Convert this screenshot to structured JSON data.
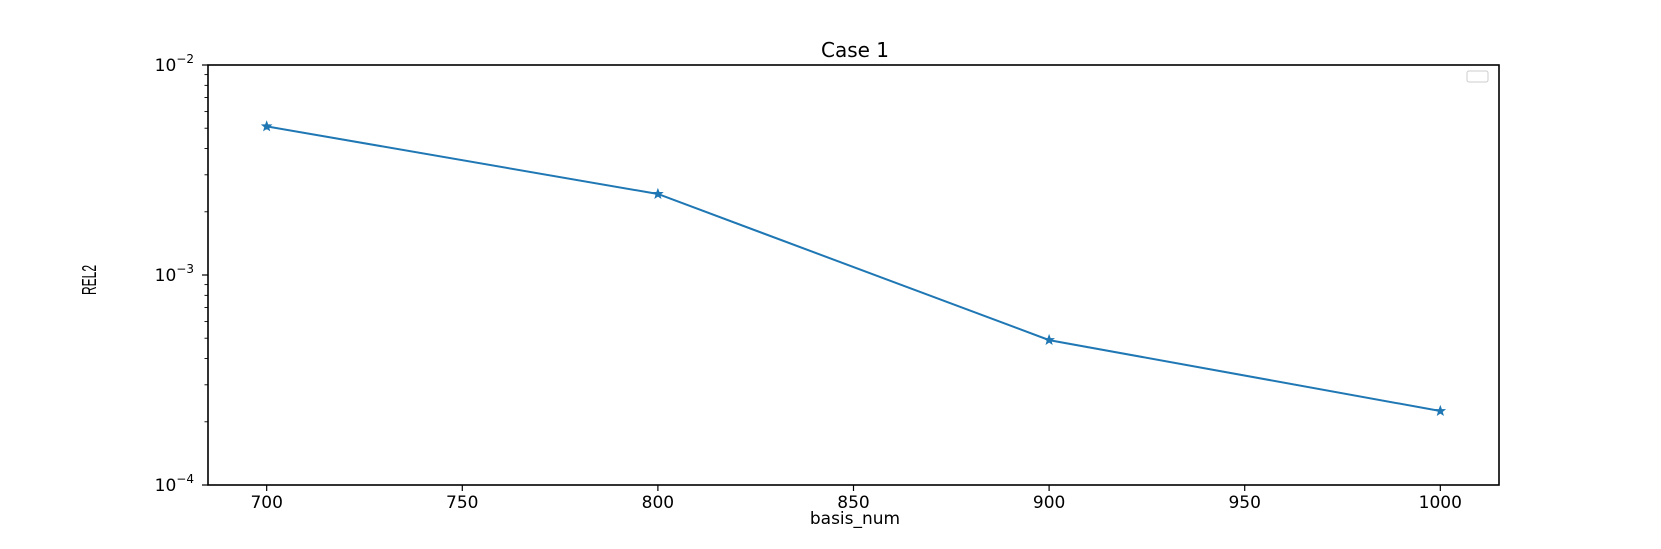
{
  "chart_data": {
    "type": "line",
    "title": "Case 1",
    "xlabel": "basis_num",
    "ylabel": "REL2",
    "yscale": "log",
    "xlim": [
      685,
      1015
    ],
    "ylim": [
      0.0001,
      0.01
    ],
    "x_ticks": [
      700,
      750,
      800,
      850,
      900,
      950,
      1000
    ],
    "y_ticks": [
      {
        "value": 0.0001,
        "base": "10",
        "exp": "−4"
      },
      {
        "value": 0.001,
        "base": "10",
        "exp": "−3"
      },
      {
        "value": 0.01,
        "base": "10",
        "exp": "−2"
      }
    ],
    "grid": false,
    "legend": {
      "position": "top-right",
      "entries": []
    },
    "series": [
      {
        "x": [
          700,
          800,
          900,
          1000
        ],
        "y": [
          0.0051,
          0.00243,
          0.00049,
          0.000225
        ],
        "color": "#1f77b4",
        "marker": "star"
      }
    ]
  }
}
